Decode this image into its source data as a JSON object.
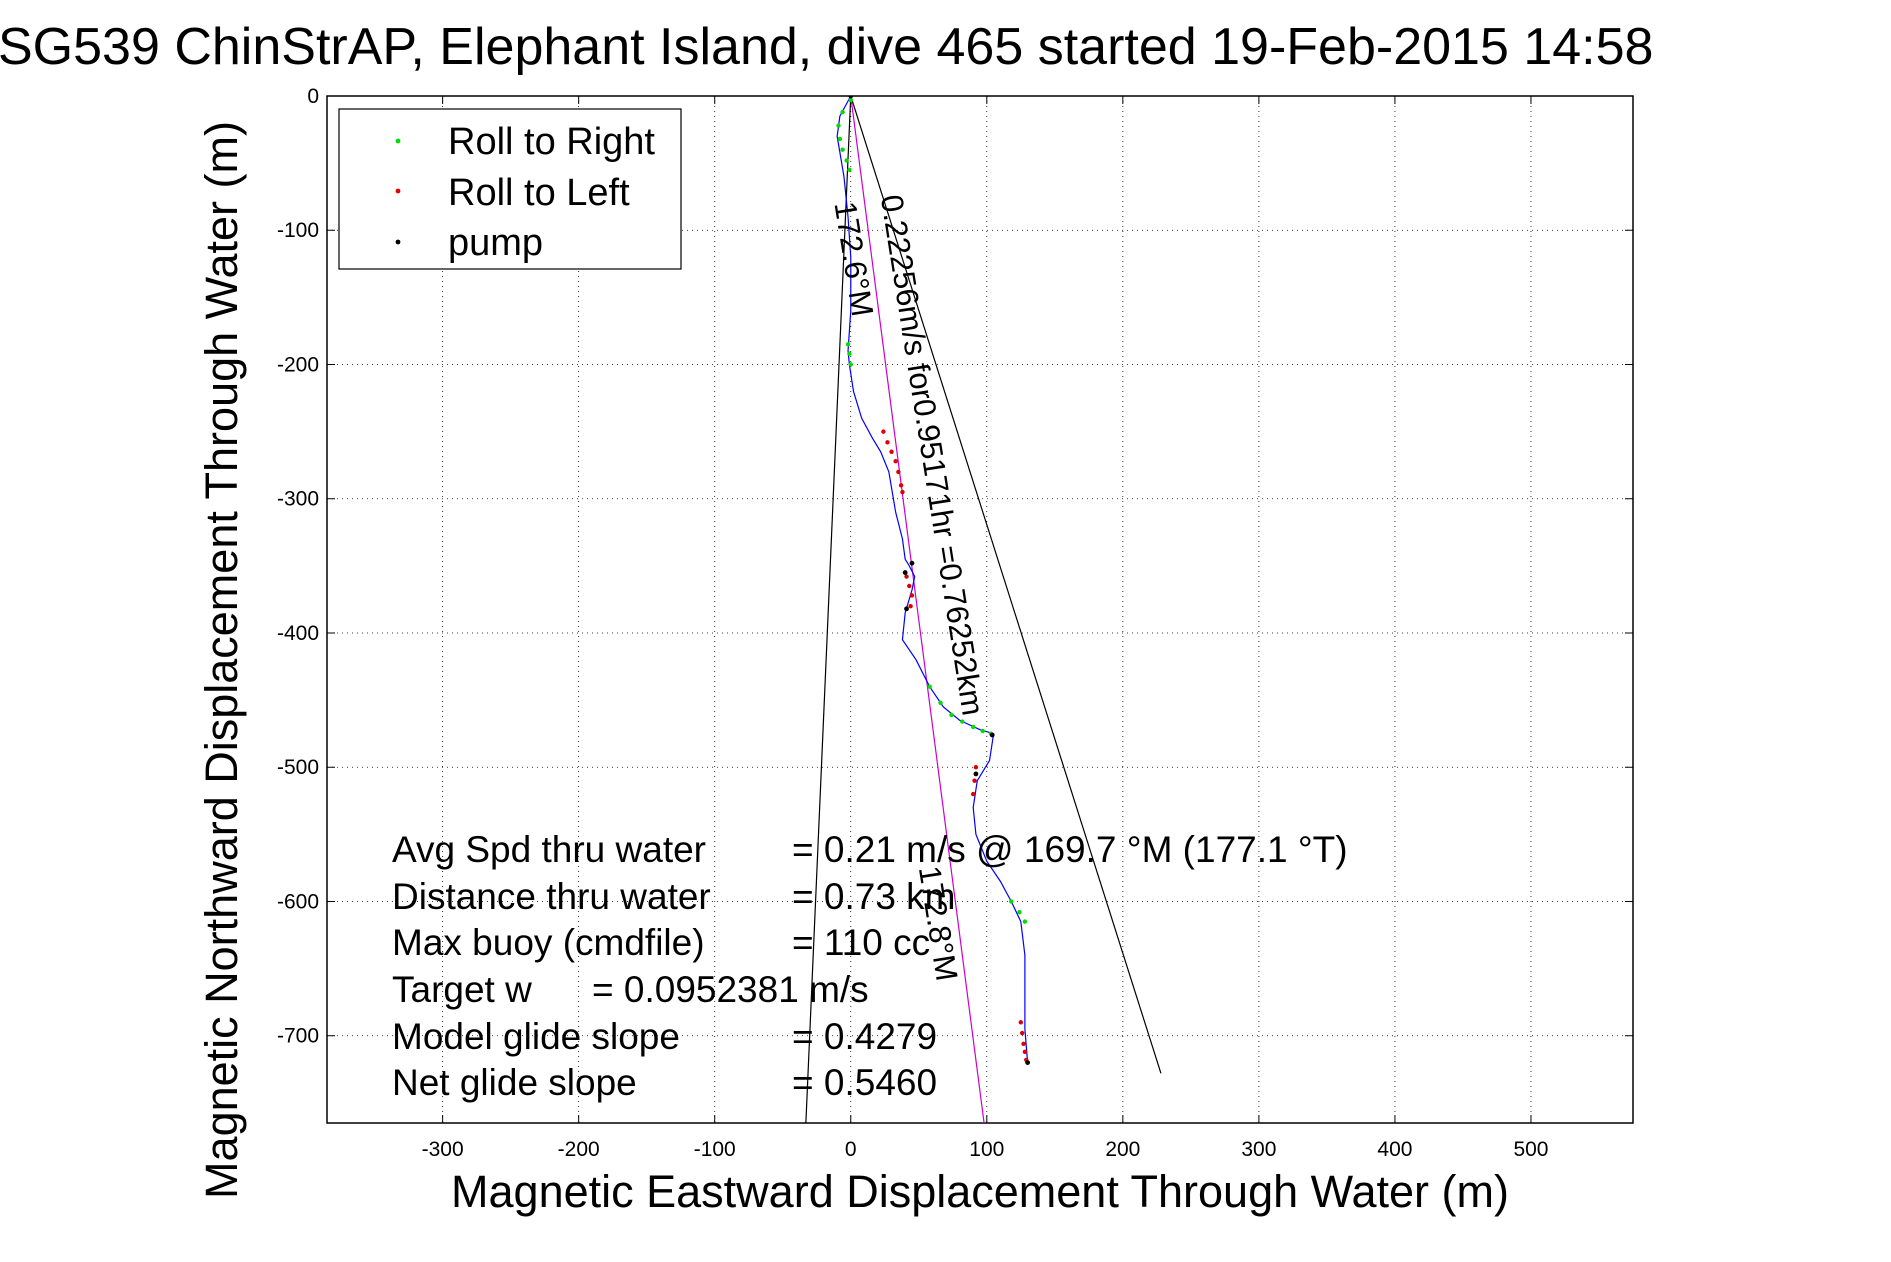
{
  "chart_data": {
    "type": "scatter",
    "title": "SG539 ChinStrAP, Elephant Island, dive 465 started 19-Feb-2015 14:58",
    "xlabel": "Magnetic Eastward Displacement Through Water (m)",
    "ylabel": "Magnetic Northward Displacement Through Water (m)",
    "xlim": [
      -385,
      575
    ],
    "ylim": [
      -765,
      0
    ],
    "x_ticks": [
      -300,
      -200,
      -100,
      0,
      100,
      200,
      300,
      400,
      500
    ],
    "y_ticks": [
      0,
      -100,
      -200,
      -300,
      -400,
      -500,
      -600,
      -700
    ],
    "x_tick_labels": [
      "-300",
      "-200",
      "-100",
      "0",
      "100",
      "200",
      "300",
      "400",
      "500"
    ],
    "y_tick_labels": [
      "0",
      "-100",
      "-200",
      "-300",
      "-400",
      "-500",
      "-600",
      "-700"
    ],
    "grid": true,
    "legend": {
      "placement": "top-left",
      "entries": [
        {
          "label": "Roll to Right",
          "color": "#00dd00"
        },
        {
          "label": "Roll to Left",
          "color": "#dd0000"
        },
        {
          "label": "pump",
          "color": "#000000"
        }
      ]
    },
    "track": {
      "color": "#0000ff",
      "x": [
        0,
        -8,
        -10,
        -8,
        -5,
        -2,
        0,
        0,
        -2,
        -1,
        2,
        8,
        16,
        22,
        28,
        33,
        38,
        40,
        43,
        47,
        45,
        40,
        38,
        48,
        58,
        68,
        80,
        95,
        105,
        102,
        93,
        90,
        92,
        100,
        110,
        118,
        125,
        128,
        128,
        128,
        130
      ],
      "y": [
        0,
        -15,
        -30,
        -42,
        -60,
        -90,
        -120,
        -160,
        -190,
        -200,
        -220,
        -240,
        -255,
        -265,
        -280,
        -310,
        -330,
        -345,
        -350,
        -358,
        -368,
        -385,
        -405,
        -420,
        -440,
        -455,
        -465,
        -472,
        -475,
        -495,
        -510,
        -530,
        -550,
        -570,
        -585,
        -600,
        -615,
        -640,
        -665,
        -695,
        -720
      ]
    },
    "roll_right": {
      "color": "#00dd00",
      "x": [
        0,
        -6,
        -9,
        -8,
        -6,
        -3,
        -1,
        -2,
        -1,
        0,
        58,
        66,
        74,
        82,
        90,
        97,
        103,
        118,
        124,
        128
      ],
      "y": [
        -3,
        -12,
        -22,
        -32,
        -40,
        -48,
        -55,
        -185,
        -192,
        -200,
        -440,
        -452,
        -461,
        -466,
        -470,
        -473,
        -475,
        -600,
        -608,
        -615
      ]
    },
    "roll_left": {
      "color": "#dd0000",
      "x": [
        24,
        27,
        30,
        33,
        35,
        37,
        38,
        41,
        43,
        45,
        44,
        92,
        91,
        90,
        125,
        126,
        127,
        128,
        129
      ],
      "y": [
        -250,
        -258,
        -265,
        -272,
        -280,
        -290,
        -295,
        -358,
        -365,
        -372,
        -380,
        -500,
        -510,
        -520,
        -690,
        -698,
        -706,
        -712,
        -718
      ]
    },
    "pump": {
      "color": "#000000",
      "x": [
        0,
        40,
        45,
        41,
        104,
        92,
        130
      ],
      "y": [
        0,
        -355,
        -348,
        -382,
        -476,
        -505,
        -720
      ]
    },
    "reference_lines": [
      {
        "name": "heading_line",
        "color": "#cc00cc",
        "x": [
          0,
          98
        ],
        "y": [
          0,
          -765
        ]
      },
      {
        "name": "cone_left",
        "color": "#000000",
        "x": [
          0,
          -33
        ],
        "y": [
          0,
          -765
        ]
      },
      {
        "name": "cone_right",
        "color": "#000000",
        "x": [
          0,
          228
        ],
        "y": [
          0,
          -728
        ]
      }
    ],
    "annotations": [
      {
        "text": "0.22256m/s for0.95171hr =0.76252km",
        "x": 22,
        "y": -75,
        "rotation_deg": 81
      },
      {
        "text": "172.6°M",
        "x": -12,
        "y": -80,
        "rotation_deg": 81
      },
      {
        "text": "172.8°M",
        "x": 50,
        "y": -575,
        "rotation_deg": 81
      }
    ],
    "stats": [
      {
        "label": "Avg Spd thru water",
        "value": "=  0.21 m/s @ 169.7 °M (177.1 °T)"
      },
      {
        "label": "Distance thru water",
        "value": "=  0.73 km"
      },
      {
        "label": "Max buoy (cmdfile)",
        "value": "= 110 cc"
      },
      {
        "label": "Target w",
        "value": "= 0.0952381 m/s"
      },
      {
        "label": "Model glide slope",
        "value": "= 0.4279"
      },
      {
        "label": "Net glide slope",
        "value": "= 0.5460"
      }
    ]
  }
}
